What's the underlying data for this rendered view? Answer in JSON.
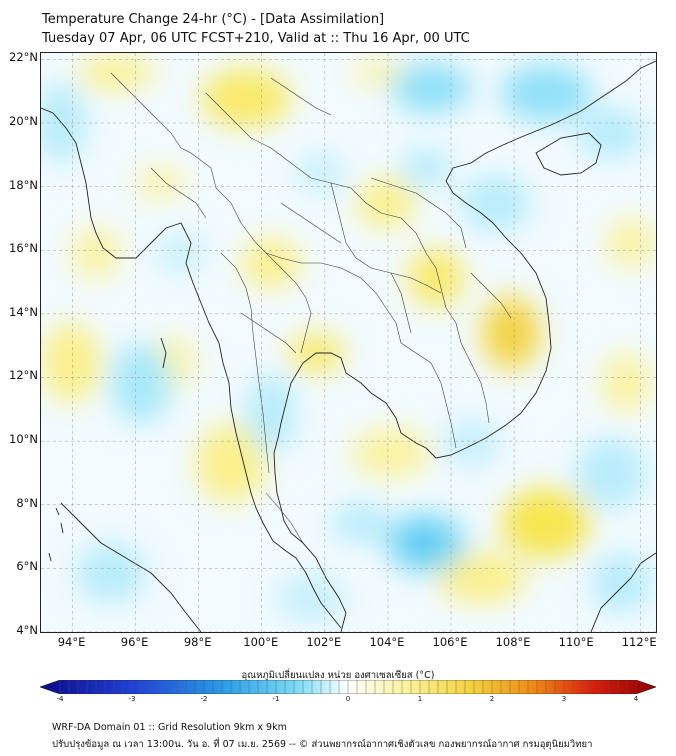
{
  "title": {
    "line1": "Temperature Change 24-hr (°C) - [Data Assimilation]",
    "line2": "Tuesday 07 Apr, 06 UTC FCST+210, Valid at :: Thu 16 Apr, 00 UTC"
  },
  "lat_labels": [
    "22°N",
    "20°N",
    "18°N",
    "16°N",
    "14°N",
    "12°N",
    "10°N",
    "8°N",
    "6°N",
    "4°N"
  ],
  "lon_labels": [
    "94°E",
    "96°E",
    "98°E",
    "100°E",
    "102°E",
    "104°E",
    "106°E",
    "108°E",
    "110°E",
    "112°E"
  ],
  "lat_values": [
    22,
    20,
    18,
    16,
    14,
    12,
    10,
    8,
    6,
    4
  ],
  "lon_values": [
    94,
    96,
    98,
    100,
    102,
    104,
    106,
    108,
    110,
    112
  ],
  "extent": {
    "lon_min": 93.0,
    "lon_max": 112.5,
    "lat_min": 4.0,
    "lat_max": 22.2
  },
  "colorbar": {
    "title": "อุณหภูมิเปลี่ยนแปลง หน่วย องศาเซลเซียส (°C)",
    "tick_labels": [
      "-4",
      "-3",
      "-2",
      "-1",
      "0",
      "1",
      "2",
      "3",
      "4"
    ],
    "min": -4,
    "max": 4,
    "colors": {
      "cold_deep": "#0a0a8c",
      "cold": "#1f6fe0",
      "cool": "#38c7f0",
      "neutral": "#ffffff",
      "warm": "#f7e640",
      "hot": "#f39c12",
      "hot_deep": "#8b0000"
    }
  },
  "footer": {
    "line1": "WRF-DA Domain 01 :: Grid Resolution 9km x 9km",
    "line2": "ปรับปรุงข้อมูล ณ เวลา 13:00น. วัน อ. ที่ 07 เม.ย. 2569 -- © ส่วนพยากรณ์อากาศเชิงตัวเลข กองพยากรณ์อากาศ กรมอุตุนิยมวิทยา"
  }
}
